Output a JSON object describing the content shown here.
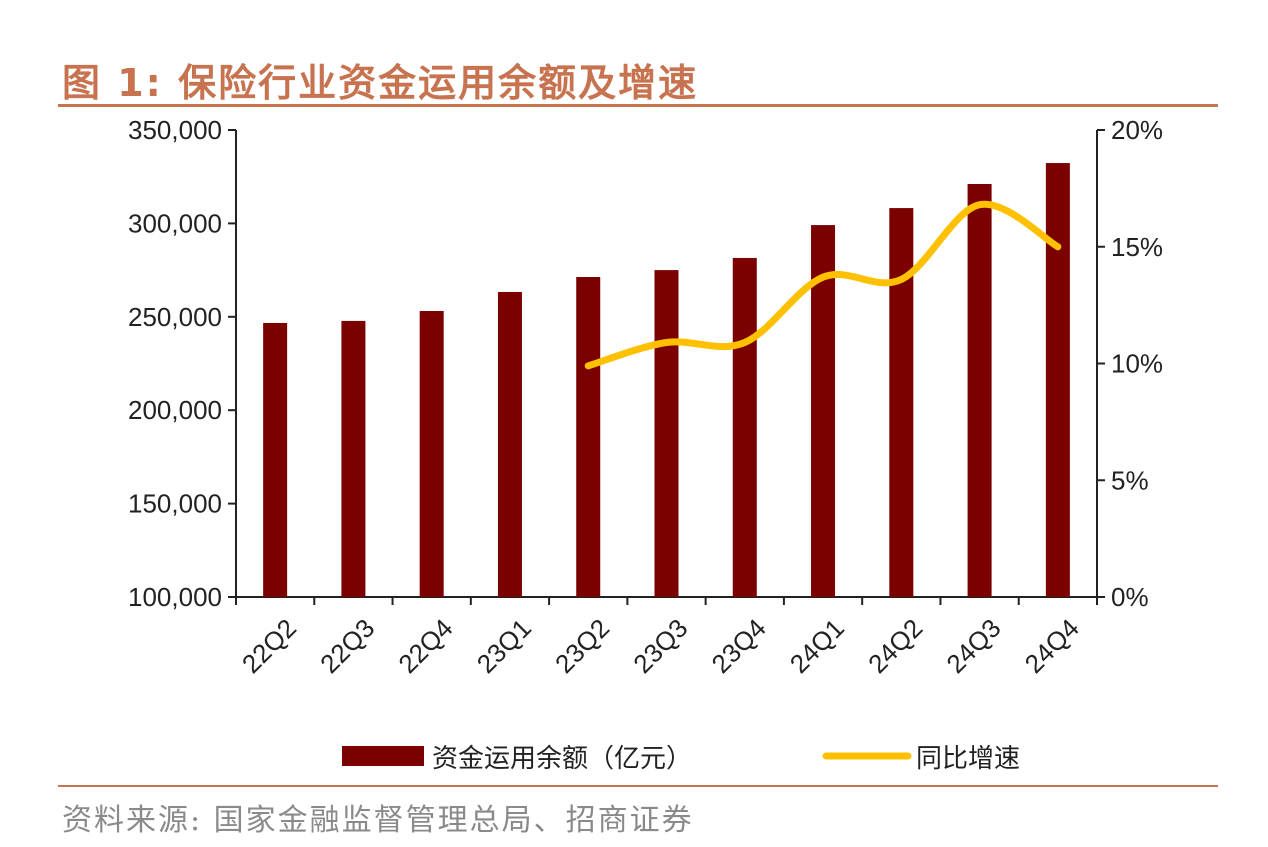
{
  "title": "图 1:  保险行业资金运用余额及增速",
  "source": "资料来源:  国家金融监督管理总局、招商证券",
  "colors": {
    "bar": "#7b0000",
    "line": "#ffc000",
    "accent": "#c8734f"
  },
  "chart_data": {
    "type": "bar+line",
    "categories": [
      "22Q2",
      "22Q3",
      "22Q4",
      "23Q1",
      "23Q2",
      "23Q3",
      "23Q4",
      "24Q1",
      "24Q2",
      "24Q3",
      "24Q4"
    ],
    "series": [
      {
        "name": "资金运用余额（亿元）",
        "type": "bar",
        "axis": "left",
        "values": [
          246700,
          247800,
          253100,
          263300,
          271300,
          275000,
          281500,
          299100,
          308200,
          321100,
          332300
        ]
      },
      {
        "name": "同比增速",
        "type": "line",
        "axis": "right",
        "values": [
          null,
          null,
          null,
          null,
          9.9,
          10.9,
          10.9,
          13.7,
          13.6,
          16.8,
          15.0
        ]
      }
    ],
    "left_axis": {
      "range": [
        100000,
        350000
      ],
      "ticks": [
        "100,000",
        "150,000",
        "200,000",
        "250,000",
        "300,000",
        "350,000"
      ]
    },
    "right_axis": {
      "range": [
        0,
        20
      ],
      "ticks": [
        "0%",
        "5%",
        "10%",
        "15%",
        "20%"
      ]
    },
    "grid": false,
    "legend": "bottom"
  }
}
